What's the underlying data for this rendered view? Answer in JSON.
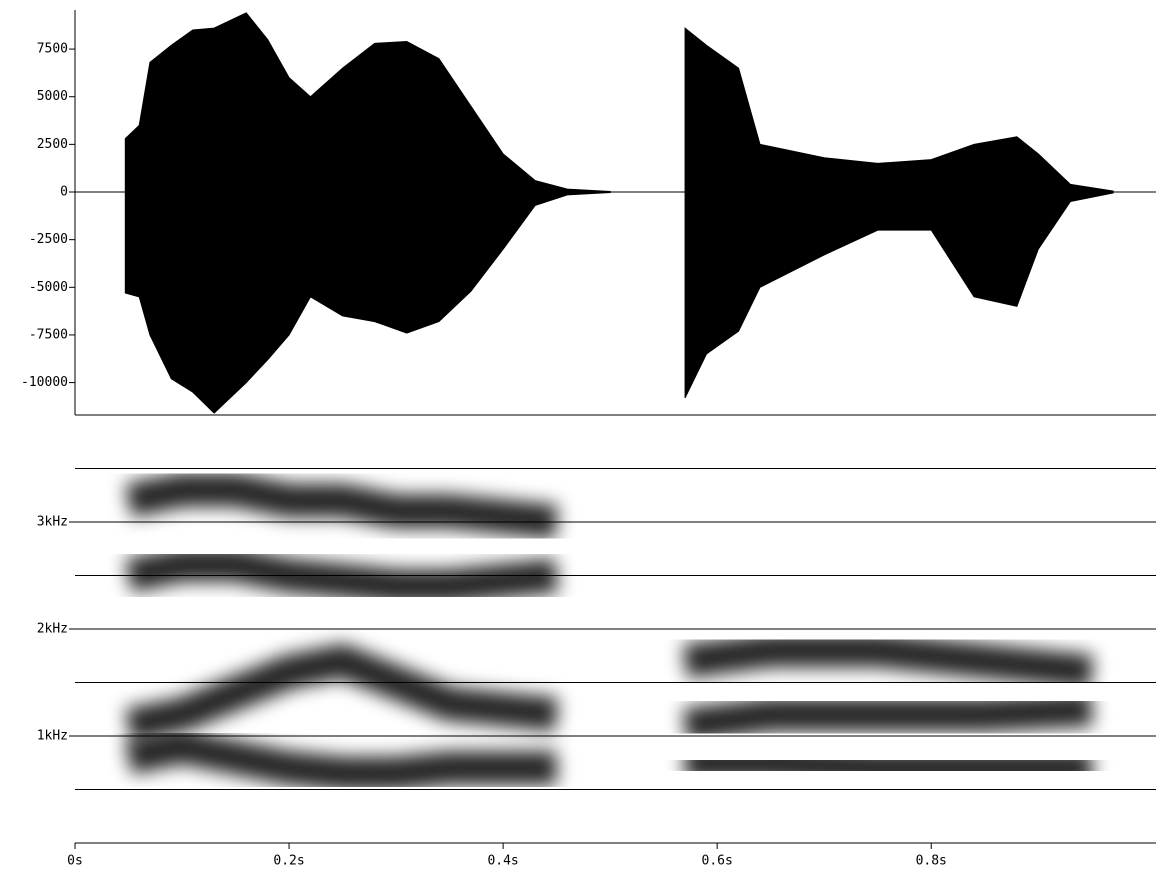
{
  "chart_data": [
    {
      "type": "waveform",
      "x": [
        0.047,
        0.06,
        0.07,
        0.09,
        0.11,
        0.13,
        0.16,
        0.18,
        0.2,
        0.22,
        0.25,
        0.28,
        0.31,
        0.34,
        0.37,
        0.4,
        0.43,
        0.46,
        0.5,
        null,
        0.57,
        0.59,
        0.62,
        0.64,
        0.7,
        0.75,
        0.8,
        0.84,
        0.88,
        0.9,
        0.93,
        0.97
      ],
      "upper": [
        2800,
        3500,
        6800,
        7700,
        8500,
        8600,
        9400,
        8000,
        6000,
        5000,
        6500,
        7800,
        7900,
        7000,
        4500,
        2000,
        600,
        150,
        30,
        null,
        8600,
        7700,
        6500,
        2500,
        1800,
        1500,
        1700,
        2500,
        2900,
        2000,
        400,
        50
      ],
      "lower": [
        -5300,
        -5500,
        -7500,
        -9800,
        -10500,
        -11600,
        -10000,
        -8800,
        -7500,
        -5500,
        -6500,
        -6800,
        -7400,
        -6800,
        -5200,
        -3000,
        -700,
        -150,
        -30,
        null,
        -10800,
        -8500,
        -7300,
        -5000,
        -3300,
        -2000,
        -2000,
        -5500,
        -6000,
        -3000,
        -500,
        -50
      ],
      "color": "#000000",
      "xlim": [
        0,
        1.01
      ],
      "ylim": [
        -11700,
        9550
      ],
      "yticks": [
        7500,
        5000,
        2500,
        0,
        -2500,
        -5000,
        -7500,
        -10000
      ]
    },
    {
      "type": "spectrogram",
      "series": [
        {
          "color": "#000000",
          "x": [
            0.05,
            0.1,
            0.15,
            0.2,
            0.25,
            0.3,
            0.35,
            0.4,
            0.45,
            null,
            0.57,
            0.65,
            0.75,
            0.85,
            0.95
          ],
          "values": [
            800,
            900,
            800,
            700,
            650,
            650,
            700,
            700,
            700,
            null,
            750,
            750,
            700,
            700,
            700
          ]
        },
        {
          "color": "#000000",
          "x": [
            0.05,
            0.1,
            0.15,
            0.2,
            0.25,
            0.3,
            0.35,
            0.4,
            0.45,
            null,
            0.57,
            0.65,
            0.75,
            0.85,
            0.95
          ],
          "values": [
            1100,
            1200,
            1400,
            1600,
            1700,
            1500,
            1300,
            1250,
            1200,
            null,
            1100,
            1200,
            1200,
            1200,
            1250
          ]
        },
        {
          "color": "#000000",
          "x": [
            0.05,
            0.1,
            0.15,
            0.2,
            0.25,
            0.3,
            0.35,
            0.4,
            0.45,
            null,
            0.57,
            0.65,
            0.75,
            0.85,
            0.95
          ],
          "values": [
            2500,
            2600,
            2600,
            2500,
            2450,
            2400,
            2400,
            2450,
            2500,
            null,
            1700,
            1800,
            1800,
            1700,
            1600
          ]
        },
        {
          "color": "#000000",
          "x": [
            0.05,
            0.1,
            0.15,
            0.2,
            0.25,
            0.3,
            0.35,
            0.4,
            0.45
          ],
          "values": [
            3200,
            3300,
            3300,
            3200,
            3200,
            3100,
            3100,
            3050,
            3000
          ]
        }
      ],
      "xlim": [
        0,
        1.01
      ],
      "ylim": [
        0,
        4000
      ],
      "yticks": [
        {
          "value": 1000,
          "label": "1kHz"
        },
        {
          "value": 2000,
          "label": "2kHz"
        },
        {
          "value": 3000,
          "label": "3kHz"
        }
      ],
      "ygrid": [
        500,
        1000,
        1500,
        2000,
        2500,
        3000,
        3500
      ],
      "xticks": [
        {
          "value": 0,
          "label": "0s"
        },
        {
          "value": 0.2,
          "label": "0.2s"
        },
        {
          "value": 0.4,
          "label": "0.4s"
        },
        {
          "value": 0.6,
          "label": "0.6s"
        },
        {
          "value": 0.8,
          "label": "0.8s"
        }
      ]
    }
  ]
}
